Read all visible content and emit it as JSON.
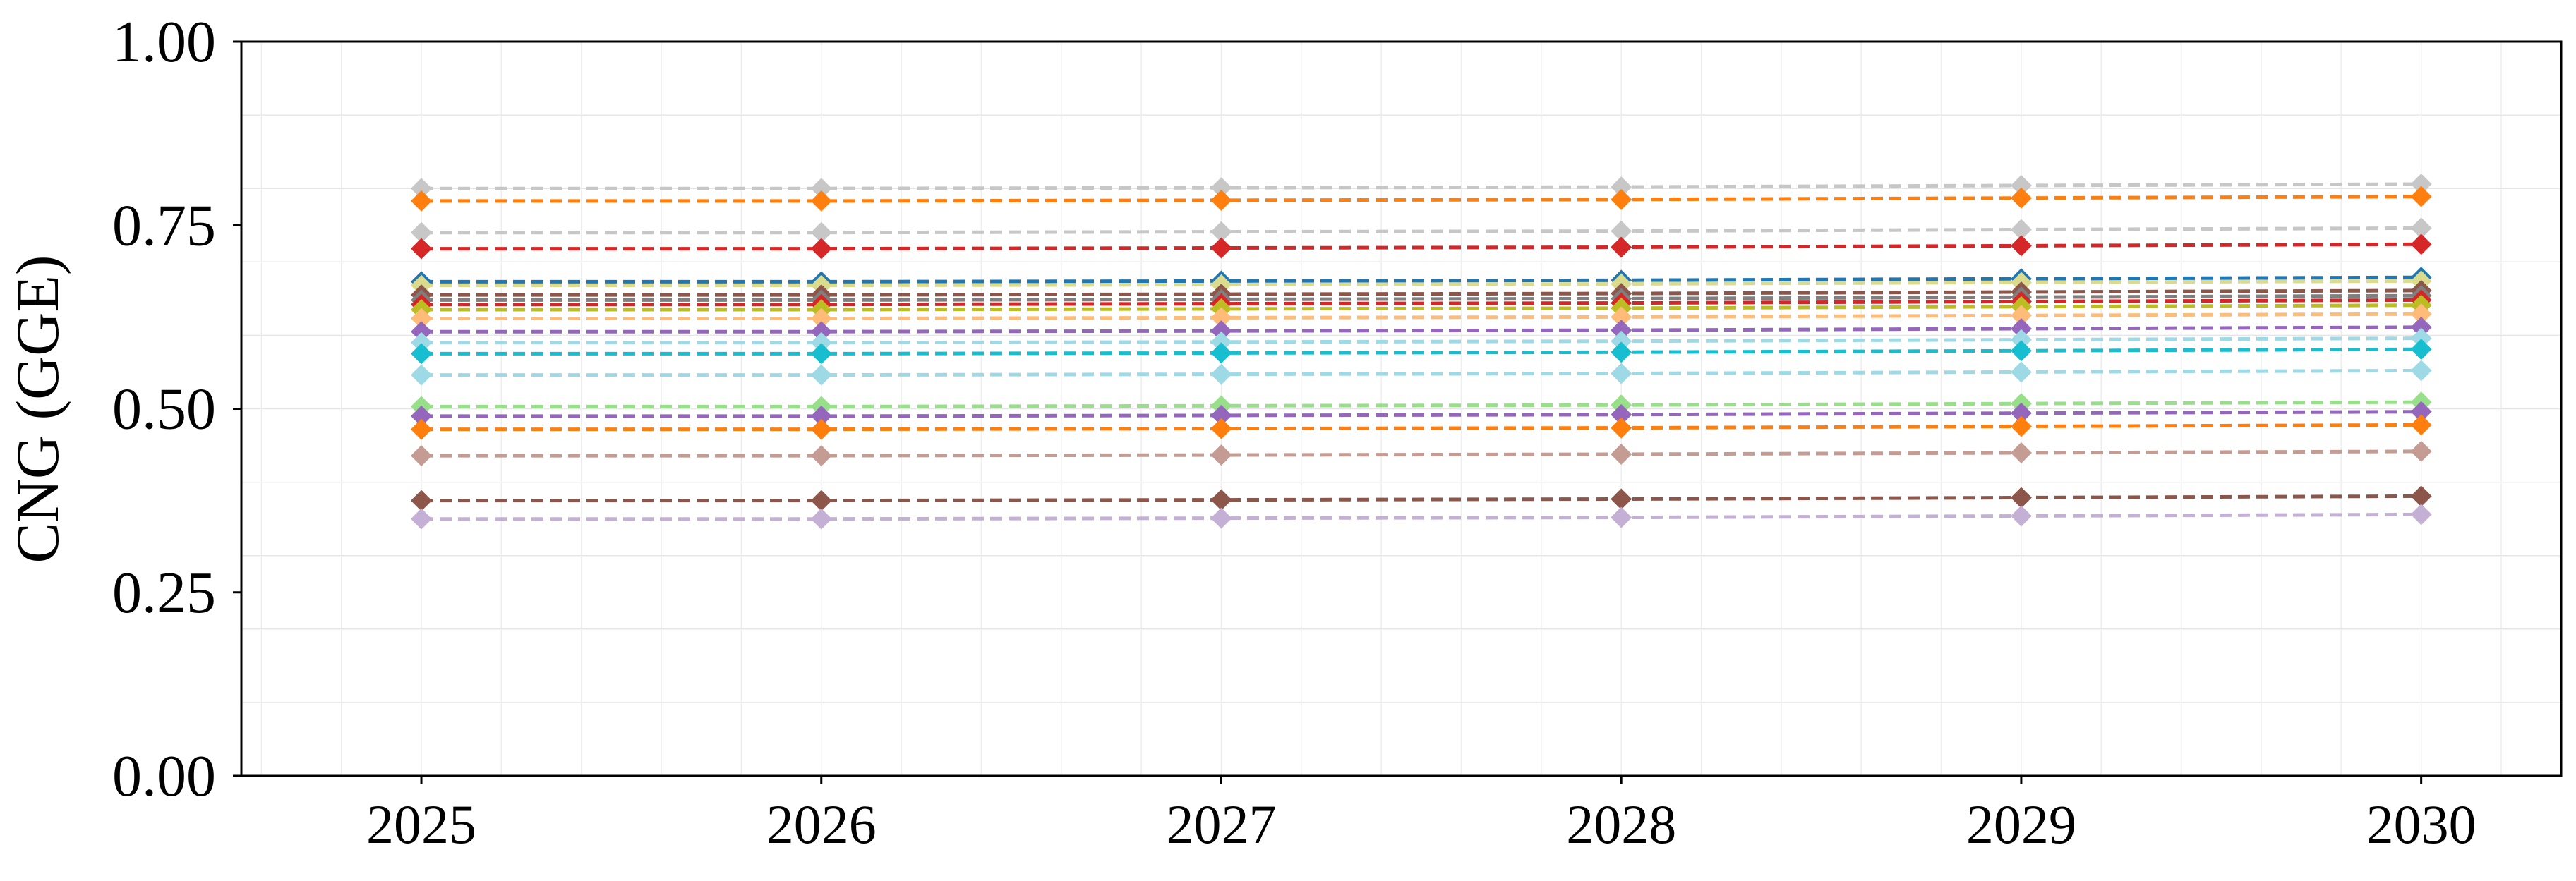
{
  "chart_data": {
    "type": "line",
    "title": "",
    "xlabel": "",
    "ylabel": "CNG (GGE)",
    "x": [
      2025,
      2026,
      2027,
      2028,
      2029,
      2030
    ],
    "xlim": [
      2024.55,
      2030.35
    ],
    "ylim": [
      0.0,
      1.0
    ],
    "yticks": [
      "0.00",
      "0.25",
      "0.50",
      "0.75",
      "1.00"
    ],
    "xticks": [
      "2025",
      "2026",
      "2027",
      "2028",
      "2029",
      "2030"
    ],
    "grid": true,
    "legend": "none",
    "line_style": "dashed",
    "marker": "diamond",
    "series": [
      {
        "color": "#c7c7c7",
        "values": [
          0.8,
          0.8,
          0.801,
          0.802,
          0.804,
          0.806
        ]
      },
      {
        "color": "#ff7f0e",
        "values": [
          0.783,
          0.783,
          0.784,
          0.785,
          0.787,
          0.789
        ]
      },
      {
        "color": "#c7c7c7",
        "values": [
          0.74,
          0.74,
          0.741,
          0.742,
          0.744,
          0.746
        ]
      },
      {
        "color": "#d62728",
        "values": [
          0.718,
          0.718,
          0.719,
          0.72,
          0.722,
          0.724
        ]
      },
      {
        "color": "#1f77b4",
        "values": [
          0.673,
          0.673,
          0.674,
          0.675,
          0.677,
          0.679
        ]
      },
      {
        "color": "#dbdb8d",
        "values": [
          0.668,
          0.668,
          0.669,
          0.67,
          0.672,
          0.674
        ]
      },
      {
        "color": "#8c564b",
        "values": [
          0.655,
          0.655,
          0.656,
          0.657,
          0.659,
          0.661
        ]
      },
      {
        "color": "#7f7f7f",
        "values": [
          0.648,
          0.648,
          0.649,
          0.65,
          0.652,
          0.654
        ]
      },
      {
        "color": "#d62728",
        "values": [
          0.642,
          0.642,
          0.643,
          0.644,
          0.646,
          0.648
        ]
      },
      {
        "color": "#bcbd22",
        "values": [
          0.635,
          0.635,
          0.636,
          0.637,
          0.639,
          0.641
        ]
      },
      {
        "color": "#ffbb78",
        "values": [
          0.623,
          0.623,
          0.624,
          0.625,
          0.627,
          0.629
        ]
      },
      {
        "color": "#9467bd",
        "values": [
          0.605,
          0.605,
          0.606,
          0.607,
          0.609,
          0.611
        ]
      },
      {
        "color": "#9edae5",
        "values": [
          0.59,
          0.59,
          0.591,
          0.592,
          0.594,
          0.596
        ]
      },
      {
        "color": "#17becf",
        "values": [
          0.575,
          0.575,
          0.576,
          0.577,
          0.579,
          0.581
        ]
      },
      {
        "color": "#9edae5",
        "values": [
          0.546,
          0.546,
          0.547,
          0.548,
          0.55,
          0.552
        ]
      },
      {
        "color": "#98df8a",
        "values": [
          0.503,
          0.503,
          0.504,
          0.505,
          0.507,
          0.509
        ]
      },
      {
        "color": "#9467bd",
        "values": [
          0.49,
          0.49,
          0.491,
          0.492,
          0.494,
          0.496
        ]
      },
      {
        "color": "#ff7f0e",
        "values": [
          0.472,
          0.472,
          0.473,
          0.474,
          0.476,
          0.478
        ]
      },
      {
        "color": "#c49c94",
        "values": [
          0.436,
          0.436,
          0.437,
          0.438,
          0.44,
          0.442
        ]
      },
      {
        "color": "#8c564b",
        "values": [
          0.375,
          0.375,
          0.376,
          0.377,
          0.379,
          0.381
        ]
      },
      {
        "color": "#c5b0d5",
        "values": [
          0.35,
          0.35,
          0.351,
          0.352,
          0.354,
          0.356
        ]
      }
    ]
  }
}
